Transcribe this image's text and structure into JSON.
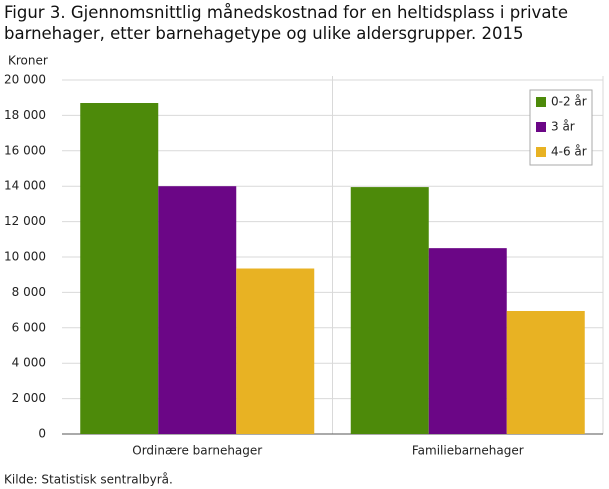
{
  "chart_data": {
    "type": "bar",
    "title": "Figur 3. Gjennomsnittlig månedskostnad for en heltidsplass i private barnehager, etter barnehagetype og ulike aldersgrupper. 2015",
    "y_label": "Kroner",
    "source": "Kilde: Statistisk sentralbyrå.",
    "categories": [
      "Ordinære barnehager",
      "Familiebarnehager"
    ],
    "series": [
      {
        "name": "0-2 år",
        "color": "#4d8a0a",
        "values": [
          18700,
          13950
        ]
      },
      {
        "name": "3 år",
        "color": "#6b0686",
        "values": [
          14000,
          10500
        ]
      },
      {
        "name": "4-6 år",
        "color": "#e8b223",
        "values": [
          9350,
          6950
        ]
      }
    ],
    "ylim": [
      0,
      20000
    ],
    "yticks": [
      0,
      {
        "value": 2000,
        "label": "2 000"
      },
      {
        "value": 4000,
        "label": "4 000"
      },
      {
        "value": 6000,
        "label": "6 000"
      },
      {
        "value": 8000,
        "label": "8 000"
      },
      {
        "value": 10000,
        "label": "10 000"
      },
      {
        "value": 12000,
        "label": "12 000"
      },
      {
        "value": 14000,
        "label": "14 000"
      },
      {
        "value": 16000,
        "label": "16 000"
      },
      {
        "value": 18000,
        "label": "18 000"
      },
      {
        "value": 20000,
        "label": "20 000"
      }
    ],
    "grid": true,
    "legend": "top-right"
  }
}
